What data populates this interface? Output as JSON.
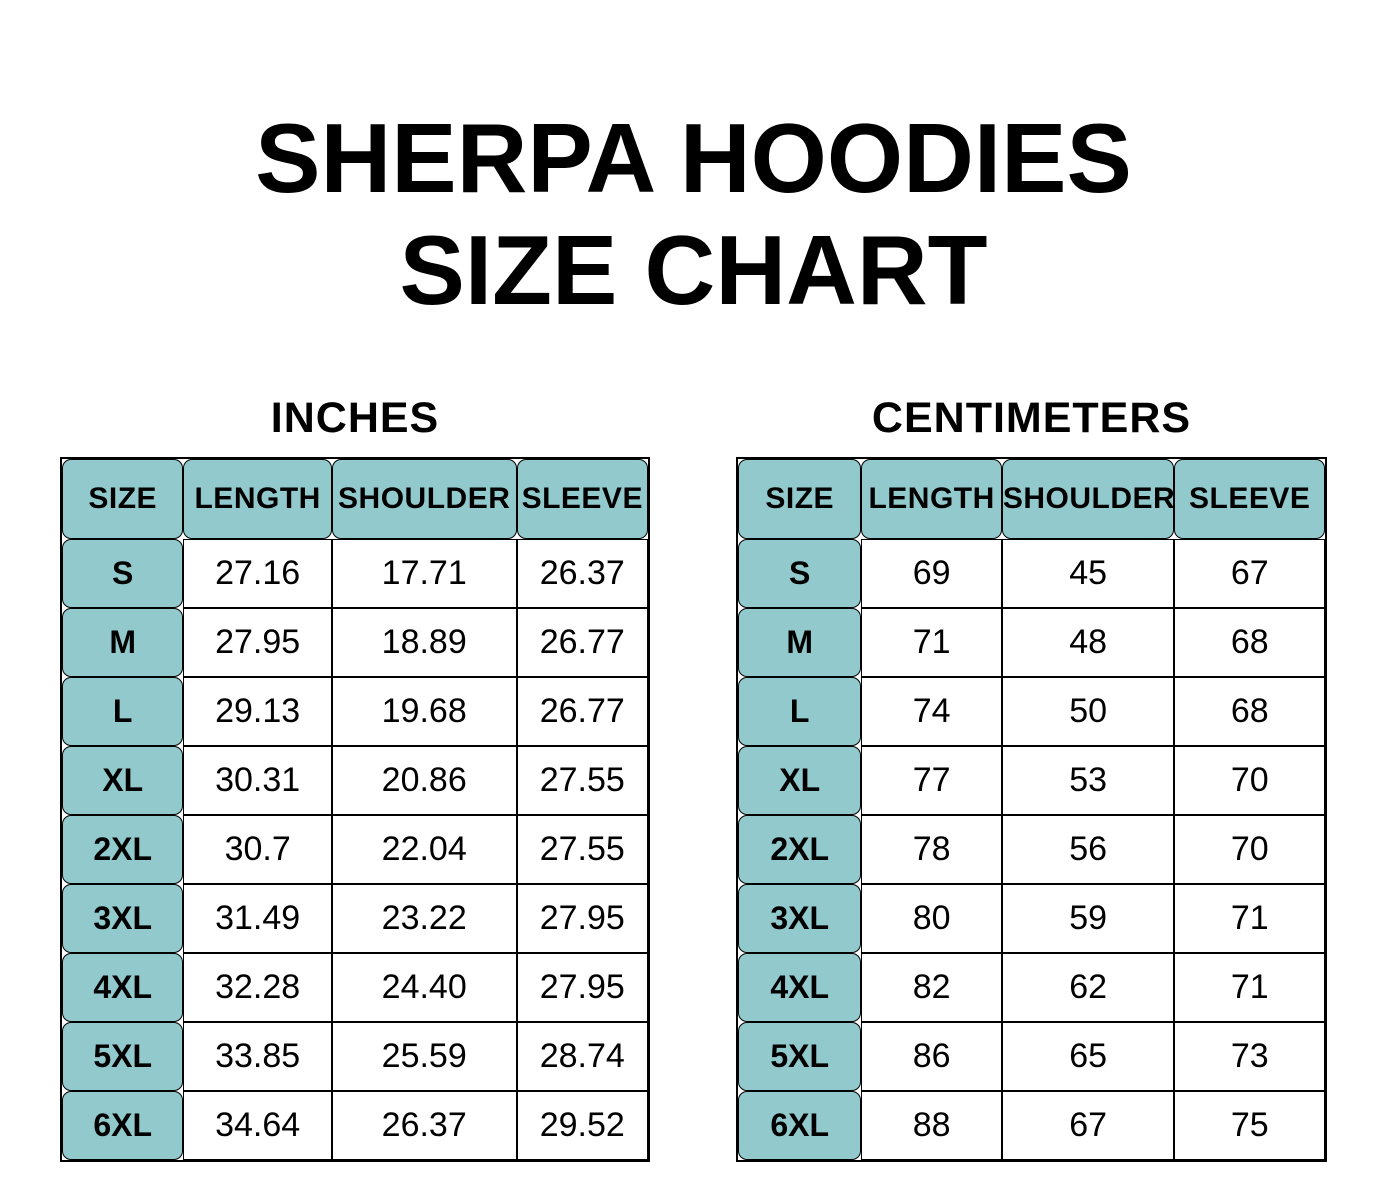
{
  "title": {
    "line1": "SHERPA HOODIES",
    "line2": "SIZE CHART"
  },
  "tables": [
    {
      "heading": "INCHES",
      "columns": [
        "SIZE",
        "LENGTH",
        "SHOULDER",
        "SLEEVE"
      ],
      "rows": [
        {
          "size": "S",
          "length": "27.16",
          "shoulder": "17.71",
          "sleeve": "26.37"
        },
        {
          "size": "M",
          "length": "27.95",
          "shoulder": "18.89",
          "sleeve": "26.77"
        },
        {
          "size": "L",
          "length": "29.13",
          "shoulder": "19.68",
          "sleeve": "26.77"
        },
        {
          "size": "XL",
          "length": "30.31",
          "shoulder": "20.86",
          "sleeve": "27.55"
        },
        {
          "size": "2XL",
          "length": "30.7",
          "shoulder": "22.04",
          "sleeve": "27.55"
        },
        {
          "size": "3XL",
          "length": "31.49",
          "shoulder": "23.22",
          "sleeve": "27.95"
        },
        {
          "size": "4XL",
          "length": "32.28",
          "shoulder": "24.40",
          "sleeve": "27.95"
        },
        {
          "size": "5XL",
          "length": "33.85",
          "shoulder": "25.59",
          "sleeve": "28.74"
        },
        {
          "size": "6XL",
          "length": "34.64",
          "shoulder": "26.37",
          "sleeve": "29.52"
        }
      ]
    },
    {
      "heading": "CENTIMETERS",
      "columns": [
        "SIZE",
        "LENGTH",
        "SHOULDER",
        "SLEEVE"
      ],
      "rows": [
        {
          "size": "S",
          "length": "69",
          "shoulder": "45",
          "sleeve": "67"
        },
        {
          "size": "M",
          "length": "71",
          "shoulder": "48",
          "sleeve": "68"
        },
        {
          "size": "L",
          "length": "74",
          "shoulder": "50",
          "sleeve": "68"
        },
        {
          "size": "XL",
          "length": "77",
          "shoulder": "53",
          "sleeve": "70"
        },
        {
          "size": "2XL",
          "length": "78",
          "shoulder": "56",
          "sleeve": "70"
        },
        {
          "size": "3XL",
          "length": "80",
          "shoulder": "59",
          "sleeve": "71"
        },
        {
          "size": "4XL",
          "length": "82",
          "shoulder": "62",
          "sleeve": "71"
        },
        {
          "size": "5XL",
          "length": "86",
          "shoulder": "65",
          "sleeve": "73"
        },
        {
          "size": "6XL",
          "length": "88",
          "shoulder": "67",
          "sleeve": "75"
        }
      ]
    }
  ],
  "colors": {
    "header_fill": "#92c9cd",
    "border": "#000000",
    "text": "#000000",
    "background": "#ffffff"
  }
}
